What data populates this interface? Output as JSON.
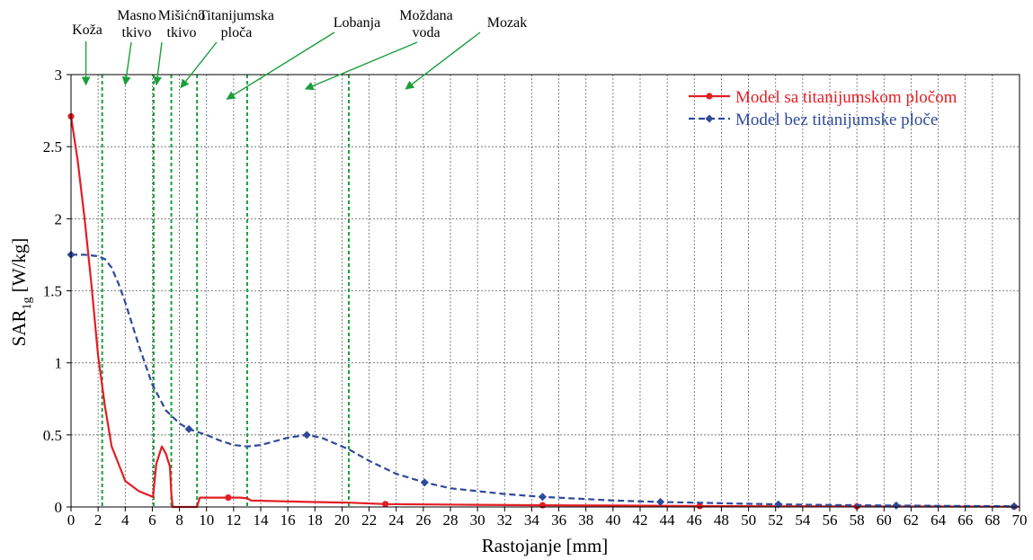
{
  "chart_data": {
    "type": "line",
    "xlabel": "Rastojanje [mm]",
    "ylabel_main": "SAR",
    "ylabel_sub": "1g",
    "ylabel_unit": " [W/kg]",
    "xlim": [
      0,
      70
    ],
    "ylim": [
      0,
      3
    ],
    "x_ticks": [
      "0",
      "2",
      "4",
      "6",
      "8",
      "10",
      "12",
      "14",
      "16",
      "18",
      "20",
      "22",
      "24",
      "26",
      "28",
      "30",
      "32",
      "34",
      "36",
      "38",
      "40",
      "42",
      "44",
      "46",
      "48",
      "50",
      "52",
      "54",
      "56",
      "58",
      "60",
      "62",
      "64",
      "66",
      "68",
      "70"
    ],
    "y_ticks": [
      "0",
      "0.5",
      "1",
      "1.5",
      "2",
      "2.5",
      "3"
    ],
    "grid": true,
    "legend_position": "top-right",
    "boundaries_x": [
      2.3,
      6.1,
      7.4,
      9.3,
      13.0,
      20.5
    ],
    "layer_labels": [
      {
        "lines": [
          "Koža"
        ],
        "arrow_to": [
          1.1,
          2.93
        ]
      },
      {
        "lines": [
          "Masno",
          "tkivo"
        ],
        "arrow_to": [
          4.0,
          2.93
        ]
      },
      {
        "lines": [
          "Mišićno",
          "tkivo"
        ],
        "arrow_to": [
          6.3,
          2.93
        ]
      },
      {
        "lines": [
          "Titanijumska",
          "ploča"
        ],
        "arrow_to": [
          8.1,
          2.91
        ]
      },
      {
        "lines": [
          "Lobanja"
        ],
        "arrow_to": [
          11.5,
          2.83
        ]
      },
      {
        "lines": [
          "Moždana",
          "voda"
        ],
        "arrow_to": [
          17.3,
          2.9
        ]
      },
      {
        "lines": [
          "Mozak"
        ],
        "arrow_to": [
          24.7,
          2.9
        ]
      }
    ],
    "series": [
      {
        "name": "Model sa titanijumskom pločom",
        "color": "#e31e24",
        "dash": "solid",
        "marker": "circle",
        "x": [
          0,
          0.5,
          1,
          1.5,
          2,
          2.5,
          3,
          3.5,
          4,
          5,
          6.05,
          6.3,
          6.7,
          7.0,
          7.3,
          7.4,
          7.5,
          9.3,
          9.5,
          11.6,
          12.5,
          13.0,
          13.3,
          17.5,
          20.5,
          23.2,
          30,
          34.8,
          40,
          46.4,
          52,
          58,
          64,
          70
        ],
        "y": [
          2.71,
          2.4,
          2.0,
          1.55,
          1.05,
          0.7,
          0.42,
          0.3,
          0.18,
          0.11,
          0.07,
          0.3,
          0.42,
          0.37,
          0.28,
          0.1,
          0.0,
          0.0,
          0.065,
          0.065,
          0.065,
          0.06,
          0.045,
          0.035,
          0.03,
          0.02,
          0.015,
          0.012,
          0.01,
          0.006,
          0.005,
          0.004,
          0.003,
          0.002
        ],
        "marker_x": [
          0,
          11.6,
          23.2,
          34.8,
          46.4,
          58,
          69.6
        ],
        "marker_y": [
          2.71,
          0.065,
          0.02,
          0.012,
          0.006,
          0.004,
          0.002
        ]
      },
      {
        "name": "Model bez titanijumske ploče",
        "color": "#2e4a9b",
        "dash": "dashed",
        "marker": "diamond",
        "x": [
          0,
          1,
          2,
          2.5,
          3,
          3.5,
          4,
          5,
          6,
          7,
          8,
          8.7,
          10,
          11,
          12,
          13,
          14,
          15,
          16,
          17.4,
          18.5,
          19.5,
          20.5,
          22,
          24,
          26.1,
          28,
          30,
          32,
          34.8,
          38,
          40,
          43.5,
          47,
          50,
          52.2,
          55,
          58,
          60.9,
          64,
          67,
          69.6
        ],
        "y": [
          1.75,
          1.75,
          1.74,
          1.72,
          1.66,
          1.55,
          1.42,
          1.12,
          0.85,
          0.67,
          0.58,
          0.54,
          0.5,
          0.46,
          0.43,
          0.42,
          0.43,
          0.455,
          0.48,
          0.5,
          0.48,
          0.44,
          0.4,
          0.32,
          0.23,
          0.17,
          0.13,
          0.11,
          0.09,
          0.07,
          0.055,
          0.045,
          0.035,
          0.028,
          0.022,
          0.018,
          0.015,
          0.012,
          0.01,
          0.008,
          0.006,
          0.005
        ],
        "marker_x": [
          0,
          8.7,
          17.4,
          26.1,
          34.8,
          43.5,
          52.2,
          60.9,
          69.6
        ],
        "marker_y": [
          1.75,
          0.54,
          0.5,
          0.17,
          0.07,
          0.035,
          0.018,
          0.01,
          0.005
        ]
      }
    ]
  },
  "colors": {
    "axis": "#000000",
    "grid": "#666666",
    "boundary": "#1a9e3a",
    "arrow": "#1a9e3a"
  }
}
